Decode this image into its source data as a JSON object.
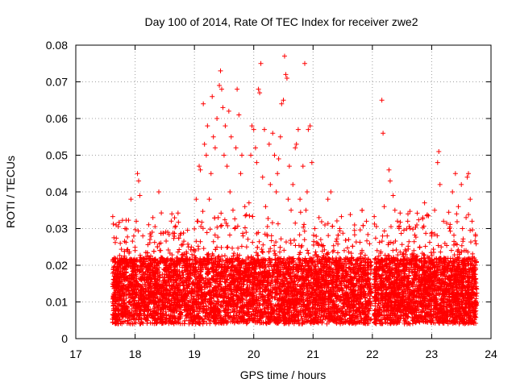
{
  "chart_data": {
    "type": "scatter",
    "title": "Day 100 of 2014, Rate Of TEC Index for receiver zwe2",
    "xlabel": "GPS time / hours",
    "ylabel": "ROTI / TECUs",
    "xlim": [
      17,
      24
    ],
    "ylim": [
      0,
      0.08
    ],
    "xticks": [
      "17",
      "18",
      "19",
      "20",
      "21",
      "22",
      "23",
      "24"
    ],
    "yticks": [
      "0",
      "0.01",
      "0.02",
      "0.03",
      "0.04",
      "0.05",
      "0.06",
      "0.07",
      "0.08"
    ],
    "grid": true,
    "marker": "+",
    "color": "#ff0000",
    "series": [
      {
        "name": "ROTI",
        "points": [
          [
            17.62,
            0.01
          ],
          [
            17.65,
            0.022
          ],
          [
            17.68,
            0.031
          ],
          [
            17.7,
            0.008
          ],
          [
            17.72,
            0.013
          ],
          [
            17.75,
            0.026
          ],
          [
            17.78,
            0.006
          ],
          [
            17.8,
            0.018
          ],
          [
            17.83,
            0.03
          ],
          [
            17.85,
            0.011
          ],
          [
            17.88,
            0.02
          ],
          [
            17.9,
            0.007
          ],
          [
            17.93,
            0.038
          ],
          [
            17.95,
            0.015
          ],
          [
            17.98,
            0.009
          ],
          [
            18.0,
            0.024
          ],
          [
            18.02,
            0.032
          ],
          [
            18.04,
            0.045
          ],
          [
            18.06,
            0.043
          ],
          [
            18.08,
            0.039
          ],
          [
            18.1,
            0.016
          ],
          [
            18.13,
            0.028
          ],
          [
            18.15,
            0.008
          ],
          [
            18.18,
            0.021
          ],
          [
            18.22,
            0.012
          ],
          [
            18.25,
            0.027
          ],
          [
            18.3,
            0.033
          ],
          [
            18.33,
            0.01
          ],
          [
            18.36,
            0.019
          ],
          [
            18.4,
            0.04
          ],
          [
            18.43,
            0.024
          ],
          [
            18.47,
            0.014
          ],
          [
            18.5,
            0.009
          ],
          [
            18.55,
            0.029
          ],
          [
            18.58,
            0.017
          ],
          [
            18.62,
            0.034
          ],
          [
            18.66,
            0.006
          ],
          [
            18.7,
            0.022
          ],
          [
            18.75,
            0.012
          ],
          [
            18.8,
            0.018
          ],
          [
            18.85,
            0.008
          ],
          [
            18.9,
            0.025
          ],
          [
            18.95,
            0.013
          ],
          [
            19.0,
            0.01
          ],
          [
            19.03,
            0.038
          ],
          [
            19.06,
            0.032
          ],
          [
            19.08,
            0.047
          ],
          [
            19.1,
            0.046
          ],
          [
            19.12,
            0.02
          ],
          [
            19.15,
            0.064
          ],
          [
            19.17,
            0.053
          ],
          [
            19.2,
            0.05
          ],
          [
            19.22,
            0.058
          ],
          [
            19.25,
            0.038
          ],
          [
            19.28,
            0.045
          ],
          [
            19.3,
            0.066
          ],
          [
            19.32,
            0.055
          ],
          [
            19.35,
            0.052
          ],
          [
            19.38,
            0.06
          ],
          [
            19.4,
            0.033
          ],
          [
            19.42,
            0.069
          ],
          [
            19.44,
            0.073
          ],
          [
            19.46,
            0.068
          ],
          [
            19.48,
            0.063
          ],
          [
            19.5,
            0.05
          ],
          [
            19.52,
            0.058
          ],
          [
            19.55,
            0.047
          ],
          [
            19.58,
            0.062
          ],
          [
            19.6,
            0.04
          ],
          [
            19.62,
            0.055
          ],
          [
            19.65,
            0.035
          ],
          [
            19.68,
            0.03
          ],
          [
            19.7,
            0.052
          ],
          [
            19.72,
            0.068
          ],
          [
            19.75,
            0.061
          ],
          [
            19.78,
            0.045
          ],
          [
            19.8,
            0.05
          ],
          [
            19.82,
            0.028
          ],
          [
            19.85,
            0.036
          ],
          [
            19.88,
            0.025
          ],
          [
            19.92,
            0.037
          ],
          [
            19.95,
            0.05
          ],
          [
            19.97,
            0.058
          ],
          [
            20.0,
            0.057
          ],
          [
            20.03,
            0.052
          ],
          [
            20.05,
            0.048
          ],
          [
            20.08,
            0.068
          ],
          [
            20.1,
            0.067
          ],
          [
            20.12,
            0.075
          ],
          [
            20.15,
            0.044
          ],
          [
            20.18,
            0.057
          ],
          [
            20.2,
            0.036
          ],
          [
            20.23,
            0.028
          ],
          [
            20.26,
            0.053
          ],
          [
            20.28,
            0.042
          ],
          [
            20.32,
            0.056
          ],
          [
            20.35,
            0.05
          ],
          [
            20.38,
            0.04
          ],
          [
            20.4,
            0.045
          ],
          [
            20.42,
            0.049
          ],
          [
            20.45,
            0.055
          ],
          [
            20.47,
            0.064
          ],
          [
            20.5,
            0.065
          ],
          [
            20.52,
            0.077
          ],
          [
            20.54,
            0.072
          ],
          [
            20.56,
            0.071
          ],
          [
            20.58,
            0.038
          ],
          [
            20.6,
            0.047
          ],
          [
            20.63,
            0.035
          ],
          [
            20.66,
            0.042
          ],
          [
            20.7,
            0.052
          ],
          [
            20.72,
            0.053
          ],
          [
            20.75,
            0.057
          ],
          [
            20.78,
            0.038
          ],
          [
            20.8,
            0.025
          ],
          [
            20.83,
            0.047
          ],
          [
            20.86,
            0.075
          ],
          [
            20.88,
            0.035
          ],
          [
            20.9,
            0.04
          ],
          [
            20.92,
            0.057
          ],
          [
            20.95,
            0.058
          ],
          [
            20.98,
            0.048
          ],
          [
            21.0,
            0.022
          ],
          [
            21.03,
            0.03
          ],
          [
            21.06,
            0.018
          ],
          [
            21.1,
            0.033
          ],
          [
            21.13,
            0.027
          ],
          [
            21.16,
            0.015
          ],
          [
            21.2,
            0.031
          ],
          [
            21.25,
            0.038
          ],
          [
            21.3,
            0.04
          ],
          [
            21.35,
            0.024
          ],
          [
            21.4,
            0.018
          ],
          [
            21.45,
            0.03
          ],
          [
            21.5,
            0.012
          ],
          [
            21.55,
            0.022
          ],
          [
            21.6,
            0.027
          ],
          [
            21.65,
            0.016
          ],
          [
            21.7,
            0.031
          ],
          [
            21.75,
            0.008
          ],
          [
            21.8,
            0.02
          ],
          [
            21.85,
            0.012
          ],
          [
            21.9,
            0.032
          ],
          [
            21.95,
            0.01
          ],
          [
            22.05,
            0.016
          ],
          [
            22.08,
            0.024
          ],
          [
            22.1,
            0.012
          ],
          [
            22.13,
            0.008
          ],
          [
            22.16,
            0.065
          ],
          [
            22.18,
            0.056
          ],
          [
            22.2,
            0.036
          ],
          [
            22.22,
            0.018
          ],
          [
            22.25,
            0.028
          ],
          [
            22.28,
            0.046
          ],
          [
            22.3,
            0.043
          ],
          [
            22.32,
            0.022
          ],
          [
            22.35,
            0.039
          ],
          [
            22.38,
            0.035
          ],
          [
            22.4,
            0.015
          ],
          [
            22.45,
            0.03
          ],
          [
            22.5,
            0.01
          ],
          [
            22.55,
            0.02
          ],
          [
            22.6,
            0.034
          ],
          [
            22.65,
            0.013
          ],
          [
            22.7,
            0.024
          ],
          [
            22.75,
            0.031
          ],
          [
            22.8,
            0.006
          ],
          [
            22.85,
            0.033
          ],
          [
            22.88,
            0.037
          ],
          [
            22.9,
            0.018
          ],
          [
            22.95,
            0.012
          ],
          [
            23.0,
            0.028
          ],
          [
            23.05,
            0.035
          ],
          [
            23.08,
            0.01
          ],
          [
            23.1,
            0.048
          ],
          [
            23.12,
            0.051
          ],
          [
            23.14,
            0.042
          ],
          [
            23.16,
            0.025
          ],
          [
            23.2,
            0.032
          ],
          [
            23.25,
            0.013
          ],
          [
            23.3,
            0.03
          ],
          [
            23.35,
            0.04
          ],
          [
            23.4,
            0.045
          ],
          [
            23.42,
            0.034
          ],
          [
            23.45,
            0.036
          ],
          [
            23.48,
            0.019
          ],
          [
            23.5,
            0.042
          ],
          [
            23.52,
            0.03
          ],
          [
            23.55,
            0.024
          ],
          [
            23.58,
            0.033
          ],
          [
            23.6,
            0.044
          ],
          [
            23.62,
            0.045
          ],
          [
            23.65,
            0.038
          ],
          [
            23.68,
            0.032
          ],
          [
            23.7,
            0.016
          ],
          [
            23.72,
            0.01
          ],
          [
            23.74,
            0.028
          ]
        ]
      }
    ],
    "background": {
      "segments": [
        [
          17.62,
          21.98
        ],
        [
          22.03,
          23.76
        ]
      ],
      "base_range": [
        0.004,
        0.022
      ],
      "density_per_hour": 1400
    }
  }
}
